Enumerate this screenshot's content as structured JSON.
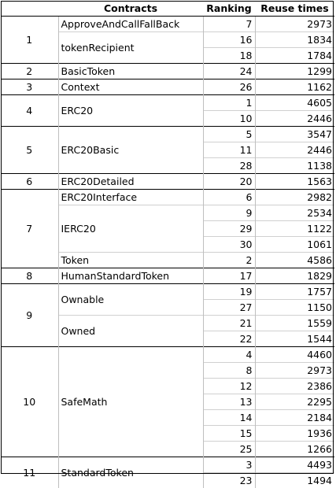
{
  "headers": {
    "contracts": "Contracts",
    "ranking": "Ranking",
    "reuse": "Reuse times"
  },
  "groups": [
    {
      "id": "1",
      "entries": [
        {
          "name": "ApproveAndCallFallBack",
          "rows": [
            {
              "rank": "7",
              "reuse": "2973"
            }
          ]
        },
        {
          "name": "tokenRecipient",
          "rows": [
            {
              "rank": "16",
              "reuse": "1834"
            },
            {
              "rank": "18",
              "reuse": "1784"
            }
          ]
        }
      ]
    },
    {
      "id": "2",
      "entries": [
        {
          "name": "BasicToken",
          "rows": [
            {
              "rank": "24",
              "reuse": "1299"
            }
          ]
        }
      ]
    },
    {
      "id": "3",
      "entries": [
        {
          "name": "Context",
          "rows": [
            {
              "rank": "26",
              "reuse": "1162"
            }
          ]
        }
      ]
    },
    {
      "id": "4",
      "entries": [
        {
          "name": "ERC20",
          "rows": [
            {
              "rank": "1",
              "reuse": "4605"
            },
            {
              "rank": "10",
              "reuse": "2446"
            }
          ]
        }
      ]
    },
    {
      "id": "5",
      "entries": [
        {
          "name": "ERC20Basic",
          "rows": [
            {
              "rank": "5",
              "reuse": "3547"
            },
            {
              "rank": "11",
              "reuse": "2446"
            },
            {
              "rank": "28",
              "reuse": "1138"
            }
          ]
        }
      ]
    },
    {
      "id": "6",
      "entries": [
        {
          "name": "ERC20Detailed",
          "rows": [
            {
              "rank": "20",
              "reuse": "1563"
            }
          ]
        }
      ]
    },
    {
      "id": "7",
      "entries": [
        {
          "name": "ERC20Interface",
          "rows": [
            {
              "rank": "6",
              "reuse": "2982"
            }
          ]
        },
        {
          "name": "IERC20",
          "rows": [
            {
              "rank": "9",
              "reuse": "2534"
            },
            {
              "rank": "29",
              "reuse": "1122"
            },
            {
              "rank": "30",
              "reuse": "1061"
            }
          ]
        },
        {
          "name": "Token",
          "rows": [
            {
              "rank": "2",
              "reuse": "4586"
            }
          ]
        }
      ]
    },
    {
      "id": "8",
      "entries": [
        {
          "name": "HumanStandardToken",
          "rows": [
            {
              "rank": "17",
              "reuse": "1829"
            }
          ]
        }
      ]
    },
    {
      "id": "9",
      "entries": [
        {
          "name": "Ownable",
          "rows": [
            {
              "rank": "19",
              "reuse": "1757"
            },
            {
              "rank": "27",
              "reuse": "1150"
            }
          ]
        },
        {
          "name": "Owned",
          "rows": [
            {
              "rank": "21",
              "reuse": "1559"
            },
            {
              "rank": "22",
              "reuse": "1544"
            }
          ]
        }
      ]
    },
    {
      "id": "10",
      "entries": [
        {
          "name": "SafeMath",
          "rows": [
            {
              "rank": "4",
              "reuse": "4460"
            },
            {
              "rank": "8",
              "reuse": "2973"
            },
            {
              "rank": "12",
              "reuse": "2386"
            },
            {
              "rank": "13",
              "reuse": "2295"
            },
            {
              "rank": "14",
              "reuse": "2184"
            },
            {
              "rank": "15",
              "reuse": "1936"
            },
            {
              "rank": "25",
              "reuse": "1266"
            }
          ]
        }
      ]
    },
    {
      "id": "11",
      "entries": [
        {
          "name": "StandardToken",
          "rows": [
            {
              "rank": "3",
              "reuse": "4493"
            },
            {
              "rank": "23",
              "reuse": "1494"
            }
          ]
        }
      ]
    }
  ]
}
